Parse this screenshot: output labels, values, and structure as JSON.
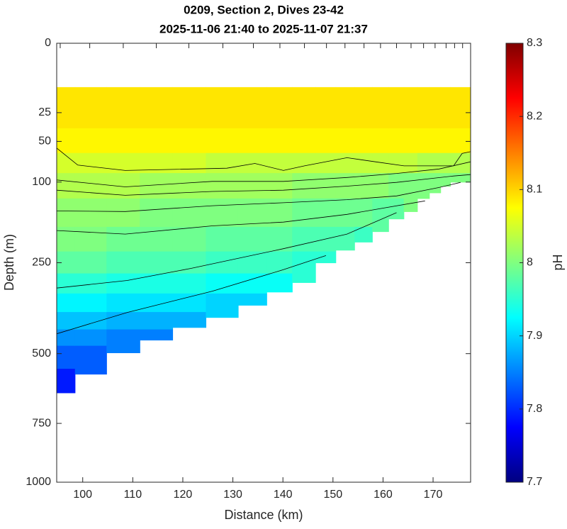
{
  "chart_data": {
    "type": "section",
    "title": "0209, Section 2, Dives 23-42",
    "subtitle": "2025-11-06 21:40 to 2025-11-07 21:37",
    "x_label": "Distance (km)",
    "y_label": "Depth (m)",
    "colorbar_label": "pH",
    "xlim": [
      94.8,
      177.5
    ],
    "xticks": [
      100,
      110,
      120,
      130,
      140,
      150,
      160,
      170
    ],
    "ylim": [
      0,
      1000
    ],
    "yticks": [
      0,
      25,
      50,
      100,
      250,
      500,
      750,
      1000
    ],
    "yscale": "sqrt",
    "y_reversed": true,
    "clim": [
      7.7,
      8.3
    ],
    "cticks": [
      7.7,
      7.8,
      7.9,
      8,
      8.1,
      8.2,
      8.3
    ],
    "colormap": "jet",
    "dive_x": [
      95.5,
      101.4,
      108.1,
      114.7,
      121.2,
      128.0,
      134.1,
      139.4,
      144.3,
      148.7,
      152.4,
      156.2,
      159.5,
      162.7,
      165.6,
      168.1,
      170.4,
      172.6,
      174.3,
      175.9
    ],
    "bottom_depth": [
      634,
      568,
      497,
      457,
      419,
      390,
      356,
      321,
      297,
      250,
      222,
      205,
      184,
      160,
      147,
      125,
      116,
      106,
      100,
      100
    ],
    "top_depth": 10,
    "depths": [
      10,
      25,
      50,
      75,
      100,
      150,
      200,
      250,
      300,
      350,
      400,
      450,
      500,
      600,
      650
    ],
    "pH": [
      [
        8.09,
        8.09,
        8.08,
        8.05,
        8.03,
        8.01,
        8.0,
        7.98,
        7.95,
        7.92,
        7.89,
        7.86,
        7.83,
        7.79,
        null
      ],
      [
        8.09,
        8.09,
        8.08,
        8.05,
        8.03,
        8.01,
        8.0,
        7.98,
        7.95,
        7.92,
        7.89,
        7.86,
        7.83,
        null,
        null
      ],
      [
        8.09,
        8.09,
        8.08,
        8.05,
        8.03,
        8.01,
        7.99,
        7.97,
        7.94,
        7.91,
        7.88,
        7.85,
        null,
        null,
        null
      ],
      [
        8.09,
        8.09,
        8.08,
        8.05,
        8.02,
        8.0,
        7.99,
        7.97,
        7.94,
        7.91,
        7.88,
        7.85,
        null,
        null,
        null
      ],
      [
        8.09,
        8.09,
        8.08,
        8.05,
        8.02,
        8.0,
        7.99,
        7.97,
        7.94,
        7.91,
        7.88,
        null,
        null,
        null,
        null
      ],
      [
        8.09,
        8.09,
        8.08,
        8.04,
        8.02,
        8.0,
        7.98,
        7.96,
        7.93,
        7.9,
        null,
        null,
        null,
        null,
        null
      ],
      [
        8.09,
        8.09,
        8.08,
        8.04,
        8.02,
        8.0,
        7.98,
        7.96,
        7.93,
        7.9,
        null,
        null,
        null,
        null,
        null
      ],
      [
        8.09,
        8.09,
        8.08,
        8.04,
        8.02,
        8.0,
        7.98,
        7.96,
        7.93,
        null,
        null,
        null,
        null,
        null,
        null
      ],
      [
        8.09,
        8.09,
        8.08,
        8.04,
        8.01,
        7.99,
        7.97,
        7.95,
        null,
        null,
        null,
        null,
        null,
        null,
        null
      ],
      [
        8.09,
        8.09,
        8.08,
        8.04,
        8.01,
        7.99,
        7.97,
        7.95,
        null,
        null,
        null,
        null,
        null,
        null,
        null
      ],
      [
        8.09,
        8.09,
        8.08,
        8.04,
        8.01,
        7.99,
        7.97,
        null,
        null,
        null,
        null,
        null,
        null,
        null,
        null
      ],
      [
        8.09,
        8.09,
        8.08,
        8.04,
        8.01,
        7.99,
        7.96,
        null,
        null,
        null,
        null,
        null,
        null,
        null,
        null
      ],
      [
        8.09,
        8.09,
        8.08,
        8.04,
        8.01,
        7.98,
        null,
        null,
        null,
        null,
        null,
        null,
        null,
        null,
        null
      ],
      [
        8.09,
        8.09,
        8.08,
        8.04,
        8.0,
        7.98,
        null,
        null,
        null,
        null,
        null,
        null,
        null,
        null,
        null
      ],
      [
        8.09,
        8.09,
        8.08,
        8.04,
        8.0,
        null,
        null,
        null,
        null,
        null,
        null,
        null,
        null,
        null,
        null
      ],
      [
        8.09,
        8.09,
        8.08,
        8.03,
        8.0,
        null,
        null,
        null,
        null,
        null,
        null,
        null,
        null,
        null,
        null
      ],
      [
        8.09,
        8.09,
        8.08,
        8.03,
        8.0,
        null,
        null,
        null,
        null,
        null,
        null,
        null,
        null,
        null,
        null
      ],
      [
        8.09,
        8.09,
        8.08,
        8.03,
        8.0,
        null,
        null,
        null,
        null,
        null,
        null,
        null,
        null,
        null,
        null
      ],
      [
        8.09,
        8.09,
        8.08,
        8.03,
        8.0,
        null,
        null,
        null,
        null,
        null,
        null,
        null,
        null,
        null,
        null
      ],
      [
        8.09,
        8.09,
        8.08,
        8.03,
        8.0,
        null,
        null,
        null,
        null,
        null,
        null,
        null,
        null,
        null,
        null
      ]
    ],
    "contours": [
      {
        "level": 8.06,
        "x": [
          94.8,
          99.0,
          108.5,
          128.8,
          134.4,
          140.1,
          144.3,
          152.8,
          158.5,
          164.2,
          174.1,
          175.8,
          177.5
        ],
        "depth": [
          57,
          77,
          84,
          81,
          75,
          84,
          78,
          68,
          73,
          78,
          78,
          63,
          61
        ]
      },
      {
        "level": 8.04,
        "x": [
          94.8,
          108.5,
          125.9,
          140.1,
          152.8,
          162.7,
          171.2,
          177.5
        ],
        "depth": [
          97,
          107,
          99,
          99,
          93.5,
          88,
          82,
          73
        ]
      },
      {
        "level": 8.02,
        "x": [
          94.8,
          108.5,
          125.9,
          140.1,
          152.8,
          162.7,
          174.1,
          177.5
        ],
        "depth": [
          112,
          120,
          114,
          112,
          106,
          100.5,
          91.5,
          89.5
        ]
      },
      {
        "level": 8.0,
        "x": [
          94.8,
          108.5,
          125.9,
          140.1,
          152.8,
          162.7,
          171.2,
          175.5
        ],
        "depth": [
          146,
          147,
          137,
          132,
          127,
          121,
          108,
          100.5
        ]
      },
      {
        "level": 7.99,
        "x": [
          94.8,
          108.5,
          125.9,
          140.1,
          152.8,
          168.4
        ],
        "depth": [
          182,
          189,
          173,
          166,
          152,
          129
        ]
      },
      {
        "level": 7.95,
        "x": [
          94.8,
          108.9,
          121.7,
          140.1,
          152.8,
          162.7
        ],
        "depth": [
          311,
          292,
          263,
          219,
          189,
          149
        ]
      },
      {
        "level": 7.9,
        "x": [
          94.8,
          108.9,
          125.9,
          140.1,
          148.6
        ],
        "depth": [
          438,
          376,
          319,
          266,
          234
        ]
      }
    ]
  }
}
